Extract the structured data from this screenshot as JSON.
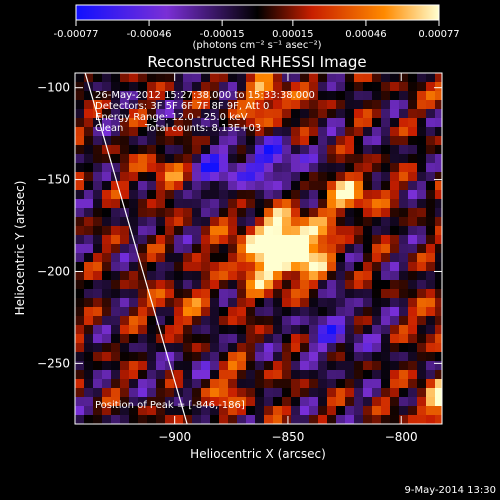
{
  "colorbar": {
    "tick_labels": [
      "-0.00077",
      "-0.00046",
      "-0.00015",
      "0.00015",
      "0.00046",
      "0.00077"
    ],
    "tick_values": [
      -0.00077,
      -0.00046,
      -0.00015,
      0.00015,
      0.00046,
      0.00077
    ],
    "units": "(photons cm⁻² s⁻¹ asec⁻²)",
    "range": [
      -0.00077,
      0.00077
    ],
    "colormap": [
      "#1010ff",
      "#7a2fd6",
      "#000000",
      "#c81e00",
      "#ff8a00",
      "#ffffd0"
    ]
  },
  "chart_data": {
    "type": "heatmap",
    "title": "Reconstructed RHESSI Image",
    "xlabel": "Heliocentric X (arcsec)",
    "ylabel": "Heliocentric Y (arcsec)",
    "xlim": [
      -947,
      -883
    ],
    "ylim": [
      -283,
      -92
    ],
    "x_ticks": [
      -900,
      -850,
      -800
    ],
    "y_ticks": [
      -100,
      -150,
      -200,
      -250
    ],
    "x_tick_labels": [
      "−900",
      "−850",
      "−800"
    ],
    "y_tick_labels": [
      "−100",
      "−150",
      "−200",
      "−250"
    ],
    "peak": {
      "x": -846,
      "y": -186,
      "value": 0.00077
    },
    "limb": [
      [
        -939.5,
        -92
      ],
      [
        -894.5,
        -283
      ]
    ],
    "sources": [
      {
        "x": -848,
        "y": -185,
        "peak": 0.00077,
        "sigma": 11
      },
      {
        "x": -858,
        "y": -192,
        "peak": 0.00055,
        "sigma": 14
      },
      {
        "x": -822,
        "y": -158,
        "peak": 0.00062,
        "sigma": 8
      },
      {
        "x": -780,
        "y": -270,
        "peak": 0.00072,
        "sigma": 9
      },
      {
        "x": -778,
        "y": -228,
        "peak": 0.00048,
        "sigma": 9
      },
      {
        "x": -773,
        "y": -100,
        "peak": 0.0007,
        "sigma": 8
      },
      {
        "x": -858,
        "y": -108,
        "peak": 0.00045,
        "sigma": 10
      },
      {
        "x": -905,
        "y": -145,
        "peak": 0.00038,
        "sigma": 8
      },
      {
        "x": -880,
        "y": -262,
        "peak": 0.0004,
        "sigma": 10
      },
      {
        "x": -900,
        "y": -220,
        "peak": 0.0003,
        "sigma": 9
      },
      {
        "x": -880,
        "y": -145,
        "peak": -0.00045,
        "sigma": 10
      },
      {
        "x": -855,
        "y": -140,
        "peak": -0.0005,
        "sigma": 10
      },
      {
        "x": -830,
        "y": -232,
        "peak": -0.00035,
        "sigma": 12
      },
      {
        "x": -890,
        "y": -255,
        "peak": -0.0003,
        "sigma": 10
      }
    ]
  },
  "annotations": {
    "time_range": "26-May-2012 15:27:38.000 to 15:33:38.000",
    "detectors": "Detectors: 3F 5F 6F 7F 8F 9F, Att 0",
    "energy_range": "Energy Range: 12.0 - 25.0 keV",
    "clean": "Clean",
    "total_counts": "Total counts: 8.13E+03",
    "peak_position": "Position of Peak = [-846,-186]"
  },
  "footer": {
    "date": "9-May-2014 13:30"
  }
}
